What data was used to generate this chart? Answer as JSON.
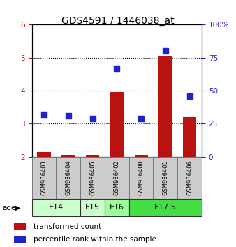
{
  "title": "GDS4591 / 1446038_at",
  "samples": [
    "GSM936403",
    "GSM936404",
    "GSM936405",
    "GSM936402",
    "GSM936400",
    "GSM936401",
    "GSM936406"
  ],
  "transformed_count": [
    2.15,
    2.05,
    2.05,
    3.95,
    2.05,
    5.05,
    3.2
  ],
  "percentile_rank": [
    32,
    31,
    29,
    67,
    29,
    80,
    46
  ],
  "age_groups": [
    {
      "label": "E14",
      "span": 2,
      "color": "#ccffcc"
    },
    {
      "label": "E15",
      "span": 1,
      "color": "#ccffcc"
    },
    {
      "label": "E16",
      "span": 1,
      "color": "#99ff99"
    },
    {
      "label": "E17.5",
      "span": 3,
      "color": "#44dd44"
    }
  ],
  "ylim_left": [
    2,
    6
  ],
  "ylim_right": [
    0,
    100
  ],
  "yticks_left": [
    2,
    3,
    4,
    5,
    6
  ],
  "yticks_right": [
    0,
    25,
    50,
    75,
    100
  ],
  "bar_color": "#bb1111",
  "dot_color": "#2222cc",
  "bar_width": 0.55,
  "dot_size": 32,
  "grid_color": "#000000",
  "sample_box_color": "#cccccc",
  "sample_box_edgecolor": "#777777",
  "left_tick_color": "#cc0000",
  "right_tick_color": "#2222cc",
  "title_fontsize": 10,
  "tick_fontsize": 7.5,
  "sample_fontsize": 6,
  "age_fontsize": 8,
  "legend_dot_size": 7,
  "legend_fontsize": 7.5
}
